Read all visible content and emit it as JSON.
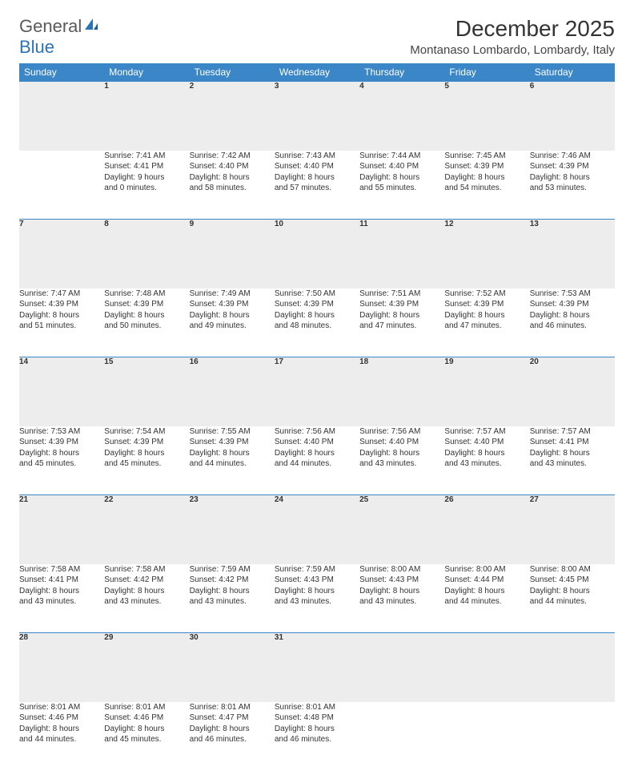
{
  "logo": {
    "text1": "General",
    "text2": "Blue"
  },
  "title": "December 2025",
  "location": "Montanaso Lombardo, Lombardy, Italy",
  "colors": {
    "header_bg": "#3b86c6",
    "header_text": "#ffffff",
    "daynum_bg": "#ededed",
    "rule": "#3b86c6",
    "body_text": "#333333",
    "logo_gray": "#5a5a5a",
    "logo_blue": "#2b74b8"
  },
  "weekdays": [
    "Sunday",
    "Monday",
    "Tuesday",
    "Wednesday",
    "Thursday",
    "Friday",
    "Saturday"
  ],
  "weeks": [
    {
      "nums": [
        "",
        "1",
        "2",
        "3",
        "4",
        "5",
        "6"
      ],
      "cells": [
        null,
        {
          "sunrise": "Sunrise: 7:41 AM",
          "sunset": "Sunset: 4:41 PM",
          "day1": "Daylight: 9 hours",
          "day2": "and 0 minutes."
        },
        {
          "sunrise": "Sunrise: 7:42 AM",
          "sunset": "Sunset: 4:40 PM",
          "day1": "Daylight: 8 hours",
          "day2": "and 58 minutes."
        },
        {
          "sunrise": "Sunrise: 7:43 AM",
          "sunset": "Sunset: 4:40 PM",
          "day1": "Daylight: 8 hours",
          "day2": "and 57 minutes."
        },
        {
          "sunrise": "Sunrise: 7:44 AM",
          "sunset": "Sunset: 4:40 PM",
          "day1": "Daylight: 8 hours",
          "day2": "and 55 minutes."
        },
        {
          "sunrise": "Sunrise: 7:45 AM",
          "sunset": "Sunset: 4:39 PM",
          "day1": "Daylight: 8 hours",
          "day2": "and 54 minutes."
        },
        {
          "sunrise": "Sunrise: 7:46 AM",
          "sunset": "Sunset: 4:39 PM",
          "day1": "Daylight: 8 hours",
          "day2": "and 53 minutes."
        }
      ]
    },
    {
      "nums": [
        "7",
        "8",
        "9",
        "10",
        "11",
        "12",
        "13"
      ],
      "cells": [
        {
          "sunrise": "Sunrise: 7:47 AM",
          "sunset": "Sunset: 4:39 PM",
          "day1": "Daylight: 8 hours",
          "day2": "and 51 minutes."
        },
        {
          "sunrise": "Sunrise: 7:48 AM",
          "sunset": "Sunset: 4:39 PM",
          "day1": "Daylight: 8 hours",
          "day2": "and 50 minutes."
        },
        {
          "sunrise": "Sunrise: 7:49 AM",
          "sunset": "Sunset: 4:39 PM",
          "day1": "Daylight: 8 hours",
          "day2": "and 49 minutes."
        },
        {
          "sunrise": "Sunrise: 7:50 AM",
          "sunset": "Sunset: 4:39 PM",
          "day1": "Daylight: 8 hours",
          "day2": "and 48 minutes."
        },
        {
          "sunrise": "Sunrise: 7:51 AM",
          "sunset": "Sunset: 4:39 PM",
          "day1": "Daylight: 8 hours",
          "day2": "and 47 minutes."
        },
        {
          "sunrise": "Sunrise: 7:52 AM",
          "sunset": "Sunset: 4:39 PM",
          "day1": "Daylight: 8 hours",
          "day2": "and 47 minutes."
        },
        {
          "sunrise": "Sunrise: 7:53 AM",
          "sunset": "Sunset: 4:39 PM",
          "day1": "Daylight: 8 hours",
          "day2": "and 46 minutes."
        }
      ]
    },
    {
      "nums": [
        "14",
        "15",
        "16",
        "17",
        "18",
        "19",
        "20"
      ],
      "cells": [
        {
          "sunrise": "Sunrise: 7:53 AM",
          "sunset": "Sunset: 4:39 PM",
          "day1": "Daylight: 8 hours",
          "day2": "and 45 minutes."
        },
        {
          "sunrise": "Sunrise: 7:54 AM",
          "sunset": "Sunset: 4:39 PM",
          "day1": "Daylight: 8 hours",
          "day2": "and 45 minutes."
        },
        {
          "sunrise": "Sunrise: 7:55 AM",
          "sunset": "Sunset: 4:39 PM",
          "day1": "Daylight: 8 hours",
          "day2": "and 44 minutes."
        },
        {
          "sunrise": "Sunrise: 7:56 AM",
          "sunset": "Sunset: 4:40 PM",
          "day1": "Daylight: 8 hours",
          "day2": "and 44 minutes."
        },
        {
          "sunrise": "Sunrise: 7:56 AM",
          "sunset": "Sunset: 4:40 PM",
          "day1": "Daylight: 8 hours",
          "day2": "and 43 minutes."
        },
        {
          "sunrise": "Sunrise: 7:57 AM",
          "sunset": "Sunset: 4:40 PM",
          "day1": "Daylight: 8 hours",
          "day2": "and 43 minutes."
        },
        {
          "sunrise": "Sunrise: 7:57 AM",
          "sunset": "Sunset: 4:41 PM",
          "day1": "Daylight: 8 hours",
          "day2": "and 43 minutes."
        }
      ]
    },
    {
      "nums": [
        "21",
        "22",
        "23",
        "24",
        "25",
        "26",
        "27"
      ],
      "cells": [
        {
          "sunrise": "Sunrise: 7:58 AM",
          "sunset": "Sunset: 4:41 PM",
          "day1": "Daylight: 8 hours",
          "day2": "and 43 minutes."
        },
        {
          "sunrise": "Sunrise: 7:58 AM",
          "sunset": "Sunset: 4:42 PM",
          "day1": "Daylight: 8 hours",
          "day2": "and 43 minutes."
        },
        {
          "sunrise": "Sunrise: 7:59 AM",
          "sunset": "Sunset: 4:42 PM",
          "day1": "Daylight: 8 hours",
          "day2": "and 43 minutes."
        },
        {
          "sunrise": "Sunrise: 7:59 AM",
          "sunset": "Sunset: 4:43 PM",
          "day1": "Daylight: 8 hours",
          "day2": "and 43 minutes."
        },
        {
          "sunrise": "Sunrise: 8:00 AM",
          "sunset": "Sunset: 4:43 PM",
          "day1": "Daylight: 8 hours",
          "day2": "and 43 minutes."
        },
        {
          "sunrise": "Sunrise: 8:00 AM",
          "sunset": "Sunset: 4:44 PM",
          "day1": "Daylight: 8 hours",
          "day2": "and 44 minutes."
        },
        {
          "sunrise": "Sunrise: 8:00 AM",
          "sunset": "Sunset: 4:45 PM",
          "day1": "Daylight: 8 hours",
          "day2": "and 44 minutes."
        }
      ]
    },
    {
      "nums": [
        "28",
        "29",
        "30",
        "31",
        "",
        "",
        ""
      ],
      "cells": [
        {
          "sunrise": "Sunrise: 8:01 AM",
          "sunset": "Sunset: 4:46 PM",
          "day1": "Daylight: 8 hours",
          "day2": "and 44 minutes."
        },
        {
          "sunrise": "Sunrise: 8:01 AM",
          "sunset": "Sunset: 4:46 PM",
          "day1": "Daylight: 8 hours",
          "day2": "and 45 minutes."
        },
        {
          "sunrise": "Sunrise: 8:01 AM",
          "sunset": "Sunset: 4:47 PM",
          "day1": "Daylight: 8 hours",
          "day2": "and 46 minutes."
        },
        {
          "sunrise": "Sunrise: 8:01 AM",
          "sunset": "Sunset: 4:48 PM",
          "day1": "Daylight: 8 hours",
          "day2": "and 46 minutes."
        },
        null,
        null,
        null
      ]
    }
  ]
}
